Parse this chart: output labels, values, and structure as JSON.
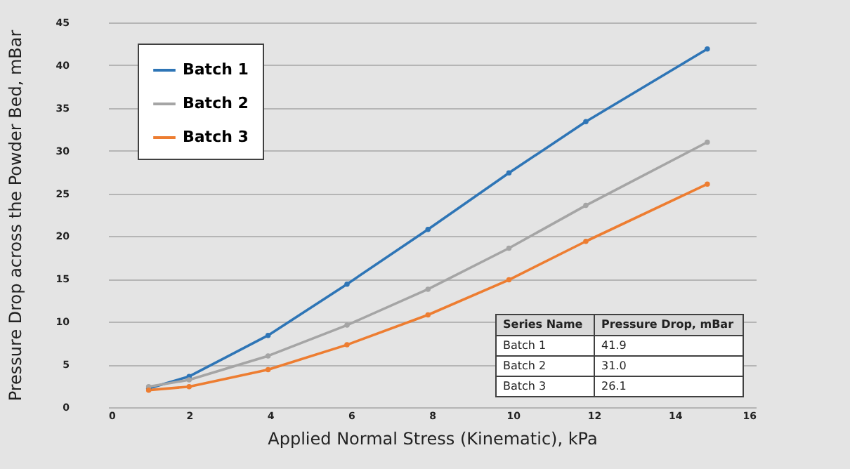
{
  "chart_data": {
    "type": "line",
    "xlabel": "Applied Normal Stress (Kinematic), kPa",
    "ylabel": "Pressure Drop across the Powder Bed, mBar",
    "x": [
      1,
      2,
      3.95,
      5.9,
      7.9,
      9.9,
      11.8,
      14.8
    ],
    "series": [
      {
        "name": "Batch 1",
        "color": "#2e75b6",
        "values": [
          2.2,
          3.6,
          8.4,
          14.4,
          20.8,
          27.4,
          33.4,
          41.9
        ]
      },
      {
        "name": "Batch 2",
        "color": "#a5a5a5",
        "values": [
          2.4,
          3.2,
          6.0,
          9.6,
          13.8,
          18.6,
          23.6,
          31.0
        ]
      },
      {
        "name": "Batch 3",
        "color": "#ed7d31",
        "values": [
          2.0,
          2.4,
          4.4,
          7.3,
          10.8,
          14.9,
          19.4,
          26.1
        ]
      }
    ],
    "xlim": [
      0,
      16
    ],
    "xticks": [
      0,
      2,
      4,
      6,
      8,
      10,
      12,
      14,
      16
    ],
    "ylim": [
      0,
      45
    ],
    "yticks": [
      0,
      5,
      10,
      15,
      20,
      25,
      30,
      35,
      40,
      45
    ],
    "grid": "y",
    "legend": "top left",
    "marker": "circle",
    "line_style": "solid",
    "annotations": [
      "Series Name",
      "Pressure Drop, mBar",
      "41.9",
      "31.0",
      "26.1"
    ]
  }
}
